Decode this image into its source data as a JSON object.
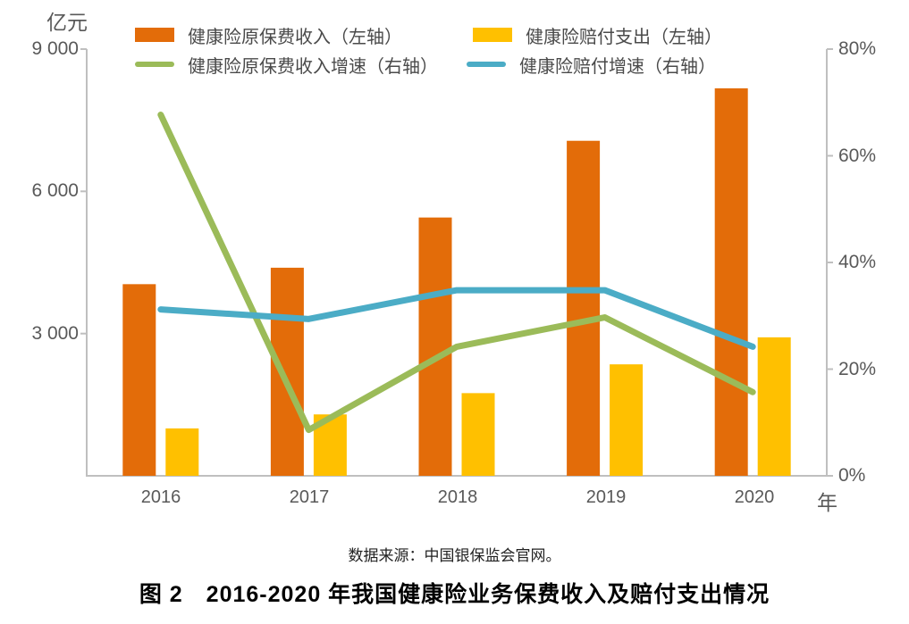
{
  "chart_data": {
    "type": "bar",
    "subtype": "bar+line combo, dual axis",
    "categories": [
      "2016",
      "2017",
      "2018",
      "2019",
      "2020"
    ],
    "x_axis": {
      "unit": "年"
    },
    "left_axis": {
      "unit": "亿元",
      "min": 0,
      "max": 9000,
      "ticks": [
        "9 000",
        "6 000",
        "3 000"
      ]
    },
    "right_axis": {
      "min": 0,
      "max": 80,
      "ticks": [
        "80%",
        "60%",
        "40%",
        "20%",
        "0%"
      ]
    },
    "series": [
      {
        "name": "健康险原保费收入（左轴）",
        "kind": "bar",
        "axis": "left",
        "color": "#E36C09",
        "values": [
          4042,
          4389,
          5448,
          7066,
          8173
        ]
      },
      {
        "name": "健康险赔付支出（左轴）",
        "kind": "bar",
        "axis": "left",
        "color": "#FFC000",
        "values": [
          1000,
          1295,
          1744,
          2351,
          2921
        ]
      },
      {
        "name": "健康险原保费收入增速（右轴）",
        "kind": "line",
        "axis": "right",
        "color": "#9BBB59",
        "values": [
          67.7,
          8.6,
          24.2,
          29.7,
          15.7
        ]
      },
      {
        "name": "健康险赔付增速（右轴）",
        "kind": "line",
        "axis": "right",
        "color": "#4BACC6",
        "values": [
          31.2,
          29.4,
          34.8,
          34.8,
          24.2
        ]
      }
    ],
    "legend_position": "top",
    "grid": false,
    "axis_color": "#BFBFBF",
    "tick_label_color": "#595959",
    "source": "数据来源：中国银保监会官网。",
    "caption": "图 2　2016-2020 年我国健康险业务保费收入及赔付支出情况"
  }
}
